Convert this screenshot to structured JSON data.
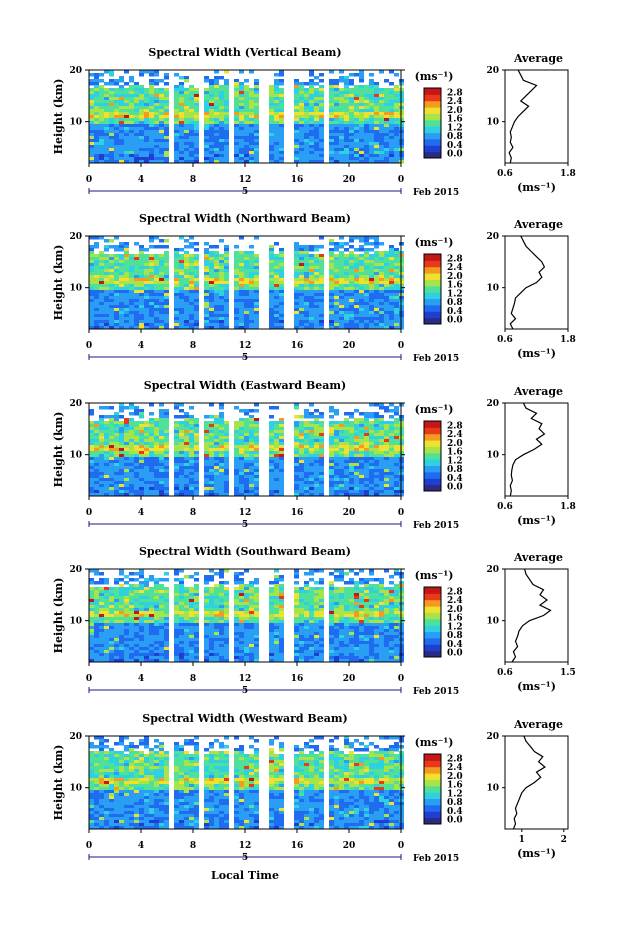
{
  "chart_data": {
    "type": "heatmap",
    "xlabel": "Local Time",
    "date_label": "Feb 2015",
    "x_ticks": [
      "0",
      "4",
      "8",
      "12",
      "16",
      "20",
      "0"
    ],
    "day_label": "5",
    "y_label": "Height (km)",
    "y_ticks": [
      "10",
      "20"
    ],
    "ylim": [
      2,
      20
    ],
    "colorbar": {
      "unit": "(ms⁻¹)",
      "ticks": [
        "0.0",
        "0.4",
        "0.8",
        "1.2",
        "1.6",
        "2.0",
        "2.4",
        "2.8"
      ],
      "colors": [
        "#2b2b83",
        "#1e3fd0",
        "#1f6cf0",
        "#2a9df5",
        "#2fd0e0",
        "#4fe09a",
        "#a8e34a",
        "#f0e030",
        "#f59a20",
        "#e83a1a",
        "#c41818"
      ]
    },
    "missing_data_gaps_hours": [
      [
        5.8,
        6.2
      ],
      [
        7.7,
        8.0
      ],
      [
        8.2,
        8.5
      ],
      [
        10.5,
        11.0
      ],
      [
        13.0,
        13.7
      ],
      [
        15.0,
        15.6
      ],
      [
        17.8,
        18.1
      ]
    ],
    "average_xlabel": "(ms⁻¹)",
    "panels": [
      {
        "title": "Spectral Width (Vertical Beam)",
        "avg_title": "Average",
        "avg_xticks": [
          "0.6",
          "1.8"
        ],
        "avg_xlim": [
          0.6,
          1.8
        ],
        "avg_profile": {
          "height_km": [
            2,
            3,
            4,
            5,
            6,
            7,
            8,
            9,
            10,
            11,
            12,
            13,
            14,
            15,
            16,
            17,
            18,
            19,
            20
          ],
          "value": [
            0.7,
            0.72,
            0.68,
            0.75,
            0.7,
            0.72,
            0.7,
            0.74,
            0.78,
            0.85,
            0.95,
            1.05,
            0.9,
            1.0,
            1.1,
            1.2,
            0.95,
            0.9,
            0.85
          ]
        }
      },
      {
        "title": "Spectral Width (Northward Beam)",
        "avg_title": "Average",
        "avg_xticks": [
          "0.6",
          "1.8"
        ],
        "avg_xlim": [
          0.6,
          1.8
        ],
        "avg_profile": {
          "height_km": [
            2,
            3,
            4,
            5,
            6,
            7,
            8,
            9,
            10,
            11,
            12,
            13,
            14,
            15,
            16,
            17,
            18,
            19,
            20
          ],
          "value": [
            0.75,
            0.7,
            0.8,
            0.72,
            0.75,
            0.78,
            0.8,
            0.9,
            1.0,
            1.2,
            1.3,
            1.25,
            1.35,
            1.3,
            1.2,
            1.1,
            1.0,
            0.95,
            0.9
          ]
        }
      },
      {
        "title": "Spectral Width (Eastward Beam)",
        "avg_title": "Average",
        "avg_xticks": [
          "0.6",
          "1.8"
        ],
        "avg_xlim": [
          0.6,
          1.8
        ],
        "avg_profile": {
          "height_km": [
            2,
            3,
            4,
            5,
            6,
            7,
            8,
            9,
            10,
            11,
            12,
            13,
            14,
            15,
            16,
            17,
            18,
            19,
            20
          ],
          "value": [
            0.7,
            0.72,
            0.7,
            0.74,
            0.72,
            0.73,
            0.75,
            0.8,
            0.95,
            1.15,
            1.3,
            1.2,
            1.35,
            1.25,
            1.3,
            1.1,
            1.2,
            1.0,
            0.95
          ]
        }
      },
      {
        "title": "Spectral Width (Southward Beam)",
        "avg_title": "Average",
        "avg_xticks": [
          "0.6",
          "1.5"
        ],
        "avg_xlim": [
          0.6,
          1.5
        ],
        "avg_profile": {
          "height_km": [
            2,
            3,
            4,
            5,
            6,
            7,
            8,
            9,
            10,
            11,
            12,
            13,
            14,
            15,
            16,
            17,
            18,
            19,
            20
          ],
          "value": [
            0.7,
            0.75,
            0.72,
            0.78,
            0.75,
            0.78,
            0.8,
            0.85,
            0.95,
            1.15,
            1.25,
            1.1,
            1.2,
            1.1,
            1.15,
            1.0,
            0.95,
            0.9,
            0.88
          ]
        }
      },
      {
        "title": "Spectral Width (Westward Beam)",
        "avg_title": "Average",
        "avg_xticks": [
          "1",
          "2"
        ],
        "avg_xlim": [
          0.6,
          2.1
        ],
        "avg_profile": {
          "height_km": [
            2,
            3,
            4,
            5,
            6,
            7,
            8,
            9,
            10,
            11,
            12,
            13,
            14,
            15,
            16,
            17,
            18,
            19,
            20
          ],
          "value": [
            0.8,
            0.85,
            0.82,
            0.88,
            0.85,
            0.9,
            0.95,
            1.0,
            1.1,
            1.3,
            1.45,
            1.35,
            1.55,
            1.4,
            1.5,
            1.3,
            1.2,
            1.1,
            1.05
          ]
        }
      }
    ]
  }
}
